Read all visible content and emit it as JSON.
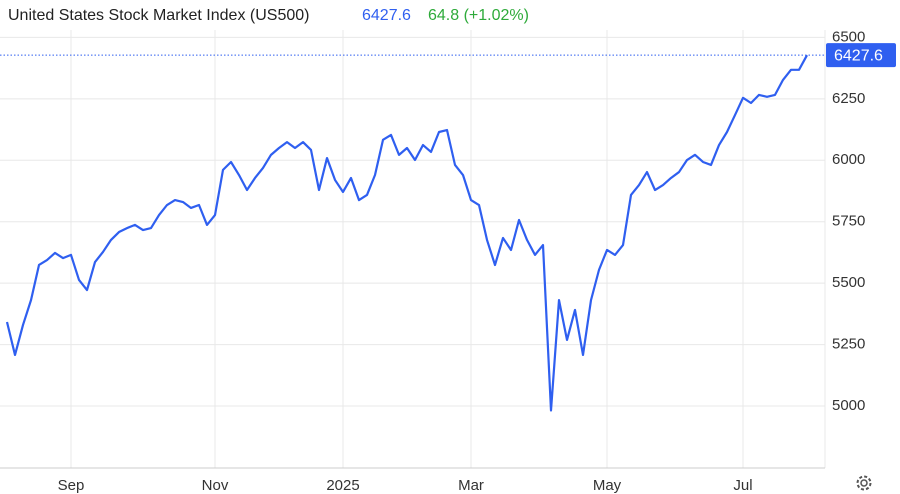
{
  "chart_data": {
    "type": "line",
    "title": "United States Stock Market Index (US500)",
    "price": 6427.6,
    "change": "64.8 (+1.02%)",
    "categories": [
      null,
      null,
      null,
      null,
      null,
      null,
      null,
      null,
      "Sep",
      null,
      null,
      null,
      null,
      null,
      null,
      null,
      null,
      null,
      null,
      null,
      null,
      null,
      null,
      null,
      null,
      null,
      "Nov",
      null,
      null,
      null,
      null,
      null,
      null,
      null,
      null,
      null,
      null,
      null,
      null,
      null,
      null,
      null,
      "2025",
      null,
      null,
      null,
      null,
      null,
      null,
      null,
      null,
      null,
      null,
      null,
      null,
      null,
      null,
      null,
      "Mar",
      null,
      null,
      null,
      null,
      null,
      null,
      null,
      null,
      null,
      null,
      null,
      null,
      null,
      null,
      null,
      null,
      "May",
      null,
      null,
      null,
      null,
      null,
      null,
      null,
      null,
      null,
      null,
      null,
      null,
      null,
      null,
      null,
      null,
      "Jul",
      null,
      null,
      null,
      null,
      null,
      null,
      null,
      null
    ],
    "series": [
      {
        "name": "US500",
        "color": "#2f5ff0",
        "values": [
          5342,
          5208,
          5330,
          5431,
          5574,
          5594,
          5623,
          5602,
          5615,
          5513,
          5472,
          5586,
          5627,
          5676,
          5708,
          5724,
          5737,
          5716,
          5724,
          5777,
          5818,
          5838,
          5830,
          5806,
          5818,
          5737,
          5777,
          5961,
          5993,
          5940,
          5879,
          5928,
          5969,
          6022,
          6050,
          6074,
          6050,
          6074,
          6042,
          5879,
          6009,
          5920,
          5871,
          5928,
          5838,
          5859,
          5940,
          6083,
          6103,
          6022,
          6050,
          6001,
          6062,
          6034,
          6115,
          6123,
          5981,
          5940,
          5838,
          5818,
          5676,
          5574,
          5684,
          5635,
          5757,
          5676,
          5615,
          5655,
          4982,
          5431,
          5269,
          5391,
          5208,
          5431,
          5554,
          5635,
          5615,
          5655,
          5859,
          5899,
          5952,
          5879,
          5899,
          5928,
          5952,
          6001,
          6022,
          5993,
          5981,
          6062,
          6115,
          6184,
          6254,
          6233,
          6266,
          6258,
          6266,
          6327,
          6368,
          6368,
          6427.6
        ]
      }
    ],
    "ylim": [
      4748,
      6530
    ],
    "yticks": [
      5000,
      5250,
      5500,
      5750,
      6000,
      6250,
      6500
    ],
    "grid": true
  }
}
